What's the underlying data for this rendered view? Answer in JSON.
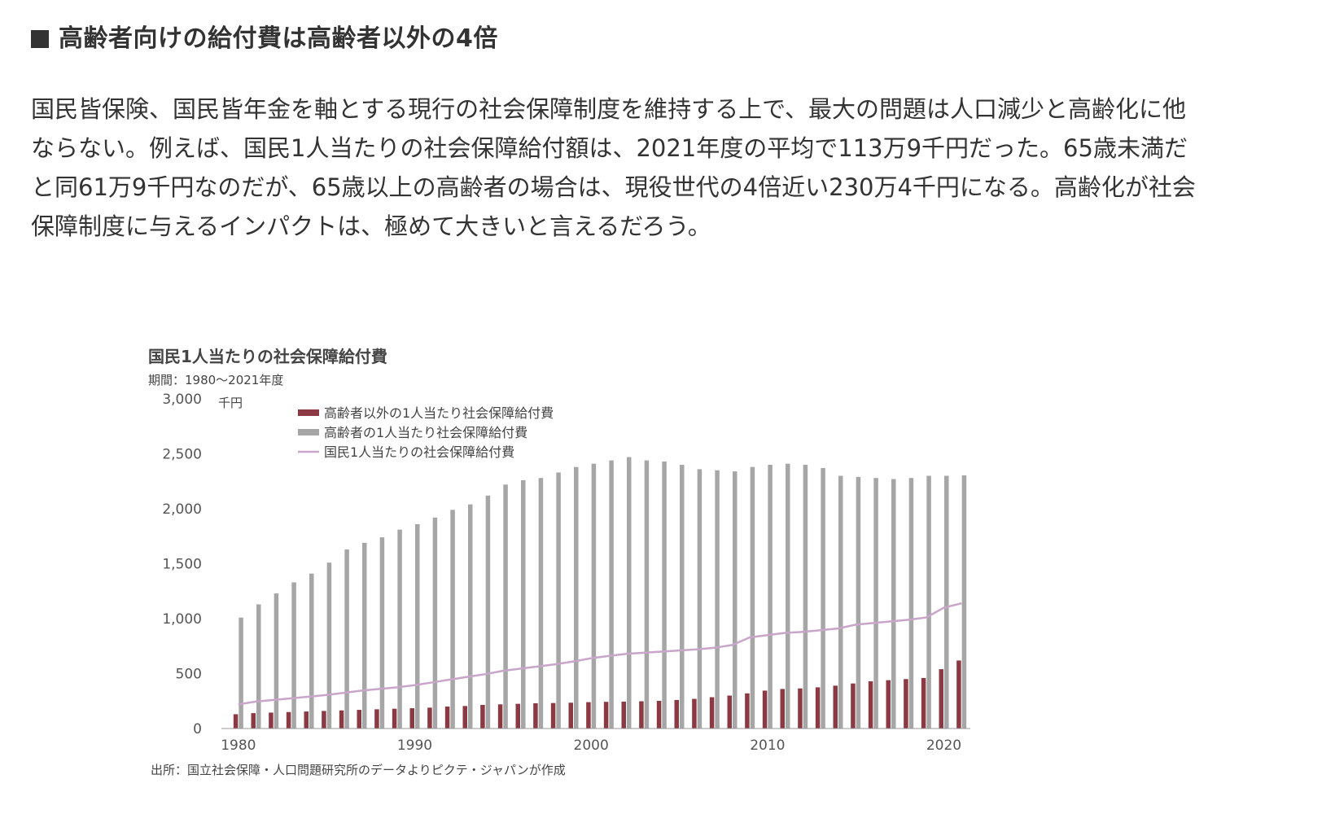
{
  "heading": "高齢者向けの給付費は高齢者以外の4倍",
  "paragraph_lines": [
    "国民皆保険、国民皆年金を軸とする現行の社会保障制度を維持する上で、最大の問題は人口減少と高齢化に他",
    "ならない。例えば、国民1人当たりの社会保障給付額は、2021年度の平均で113万9千円だった。65歳未満だ",
    "と同61万9千円なのだが、65歳以上の高齢者の場合は、現役世代の4倍近い230万4千円になる。高齢化が社会",
    "保障制度に与えるインパクトは、極めて大きいと言えるだろう。"
  ],
  "chart_data": {
    "type": "bar",
    "title": "国民1人当たりの社会保障給付費",
    "subtitle": "期間：1980〜2021年度",
    "unit": "千円",
    "source": "出所：国立社会保障・人口問題研究所のデータよりピクテ・ジャパンが作成",
    "ylim": [
      0,
      3000
    ],
    "y_ticks": [
      "0",
      "500",
      "1,000",
      "1,500",
      "2,000",
      "2,500",
      "3,000"
    ],
    "x_tick_labels": [
      "1980",
      "1990",
      "2000",
      "2010",
      "2020"
    ],
    "legend_placement": "top",
    "x": [
      1980,
      1981,
      1982,
      1983,
      1984,
      1985,
      1986,
      1987,
      1988,
      1989,
      1990,
      1991,
      1992,
      1993,
      1994,
      1995,
      1996,
      1997,
      1998,
      1999,
      2000,
      2001,
      2002,
      2003,
      2004,
      2005,
      2006,
      2007,
      2008,
      2009,
      2010,
      2011,
      2012,
      2013,
      2014,
      2015,
      2016,
      2017,
      2018,
      2019,
      2020,
      2021
    ],
    "series": [
      {
        "name": "高齢者以外の1人当たり社会保障給付費",
        "kind": "bar",
        "color": "#8b3a44",
        "values": [
          130,
          140,
          145,
          150,
          155,
          160,
          165,
          170,
          175,
          180,
          185,
          190,
          200,
          205,
          215,
          220,
          225,
          230,
          232,
          235,
          240,
          243,
          245,
          248,
          252,
          260,
          270,
          285,
          300,
          320,
          345,
          360,
          365,
          375,
          390,
          410,
          430,
          440,
          450,
          460,
          540,
          619
        ]
      },
      {
        "name": "高齢者の1人当たり社会保障給付費",
        "kind": "bar",
        "color": "#a6a6a6",
        "values": [
          1010,
          1130,
          1230,
          1330,
          1410,
          1510,
          1630,
          1690,
          1740,
          1810,
          1860,
          1920,
          1990,
          2040,
          2120,
          2220,
          2260,
          2280,
          2330,
          2380,
          2410,
          2440,
          2470,
          2440,
          2430,
          2400,
          2360,
          2350,
          2340,
          2380,
          2400,
          2410,
          2400,
          2370,
          2300,
          2290,
          2280,
          2270,
          2280,
          2300,
          2300,
          2304
        ]
      },
      {
        "name": "国民1人当たりの社会保障給付費",
        "kind": "line",
        "color": "#c9a6c9",
        "values": [
          220,
          245,
          260,
          275,
          290,
          305,
          325,
          345,
          360,
          375,
          395,
          420,
          445,
          470,
          495,
          525,
          545,
          565,
          585,
          610,
          640,
          660,
          680,
          690,
          700,
          710,
          720,
          735,
          760,
          830,
          850,
          870,
          880,
          895,
          910,
          945,
          960,
          975,
          990,
          1010,
          1100,
          1139
        ]
      }
    ]
  }
}
